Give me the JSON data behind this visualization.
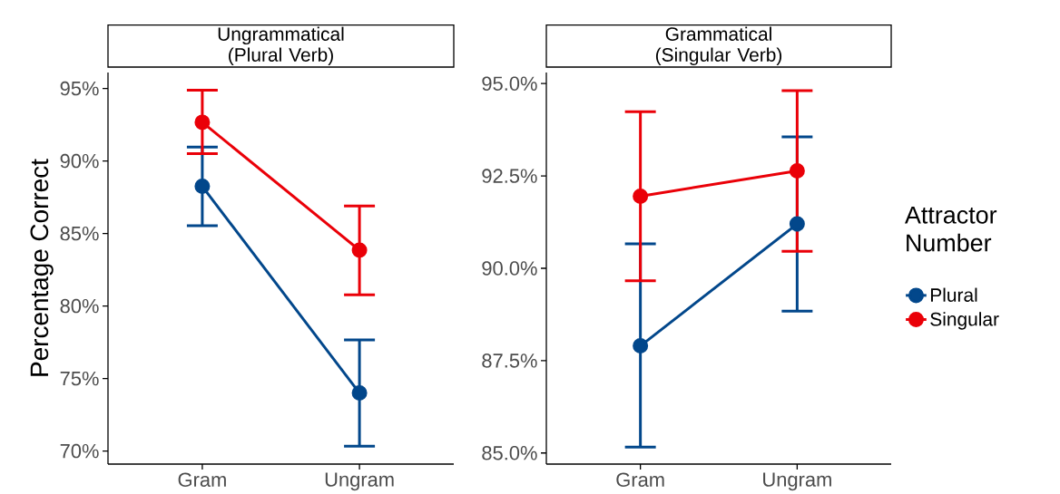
{
  "chart_data": [
    {
      "type": "line",
      "title": "Ungrammatical (Plural Verb)",
      "ylabel": "Percentage Correct",
      "categories": [
        "Gram",
        "Ungram"
      ],
      "series": [
        {
          "color": "#02478b",
          "values": [
            88.25,
            74.0
          ],
          "errors": [
            [
              85.54,
              90.96
            ],
            [
              70.33,
              77.67
            ]
          ]
        },
        {
          "color": "#ea0008",
          "values": [
            92.67,
            83.85
          ],
          "errors": [
            [
              90.5,
              94.88
            ],
            [
              80.77,
              86.9
            ]
          ]
        }
      ],
      "ylim": [
        69.1,
        96.1
      ],
      "yticks": [
        {
          "value": 70,
          "label": "70%"
        },
        {
          "value": 75,
          "label": "75%"
        },
        {
          "value": 80,
          "label": "80%"
        },
        {
          "value": 85,
          "label": "85%"
        },
        {
          "value": 90,
          "label": "90%"
        },
        {
          "value": 95,
          "label": "95%"
        }
      ],
      "grid": false,
      "marker": "circle",
      "line_style": "solid"
    },
    {
      "type": "line",
      "title": "Grammatical (Singular Verb)",
      "categories": [
        "Gram",
        "Ungram"
      ],
      "series": [
        {
          "name": "Plural",
          "color": "#02478b",
          "values": [
            87.9,
            91.2
          ],
          "errors": [
            [
              85.16,
              90.66
            ],
            [
              88.84,
              93.56
            ]
          ]
        },
        {
          "name": "Singular",
          "color": "#ea0008",
          "values": [
            91.95,
            92.64
          ],
          "errors": [
            [
              89.66,
              94.24
            ],
            [
              90.46,
              94.81
            ]
          ]
        }
      ],
      "ylim": [
        84.7,
        95.3
      ],
      "yticks": [
        {
          "value": 85,
          "label": "85.0%"
        },
        {
          "value": 87.5,
          "label": "87.5%"
        },
        {
          "value": 90,
          "label": "90.0%"
        },
        {
          "value": 92.5,
          "label": "92.5%"
        },
        {
          "value": 95,
          "label": "95.0%"
        }
      ],
      "grid": false,
      "marker": "circle",
      "line_style": "solid",
      "legend": "right",
      "legend_title": "Attractor Number"
    }
  ]
}
